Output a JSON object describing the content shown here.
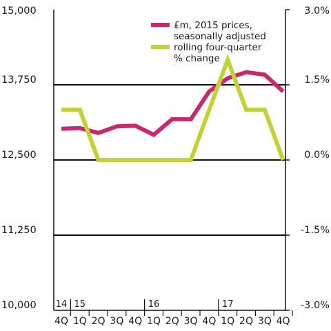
{
  "chart_data": {
    "type": "line",
    "categories": [
      "4Q",
      "1Q",
      "2Q",
      "3Q",
      "4Q",
      "1Q",
      "2Q",
      "3Q",
      "4Q",
      "1Q",
      "2Q",
      "3Q",
      "4Q"
    ],
    "year_labels": [
      {
        "label": "14",
        "index": 0
      },
      {
        "label": "15",
        "index": 1
      },
      {
        "label": "16",
        "index": 5
      },
      {
        "label": "17",
        "index": 9
      }
    ],
    "left_axis": {
      "ylim": [
        10000,
        15000
      ],
      "ticks": [
        10000,
        11250,
        12500,
        13750,
        15000
      ],
      "tick_labels": [
        "10,000",
        "11,250",
        "12,500",
        "13,750",
        "15,000"
      ]
    },
    "right_axis": {
      "ylim": [
        -3.0,
        3.0
      ],
      "ticks": [
        -3.0,
        -1.5,
        0.0,
        1.5,
        3.0
      ],
      "tick_labels": [
        "-3.0%",
        "-1.5%",
        "0.0%",
        "1.5%",
        "3.0%"
      ]
    },
    "gridlines": [
      11250,
      12500,
      13750
    ],
    "series": [
      {
        "name_lines": [
          "£m, 2015 prices,",
          "seasonally adjusted"
        ],
        "axis": "left",
        "color": "#c8286e",
        "values": [
          13020,
          13030,
          12950,
          13060,
          13070,
          12920,
          13180,
          13175,
          13640,
          13860,
          13960,
          13920,
          13640
        ]
      },
      {
        "name_lines": [
          "rolling four-quarter",
          "% change"
        ],
        "axis": "right",
        "color": "#c2d136",
        "values": [
          1.0,
          1.0,
          0.0,
          0.0,
          0.0,
          0.0,
          0.0,
          0.0,
          1.0,
          2.0,
          1.0,
          1.0,
          0.0
        ]
      }
    ],
    "legend_position": "top-right"
  }
}
